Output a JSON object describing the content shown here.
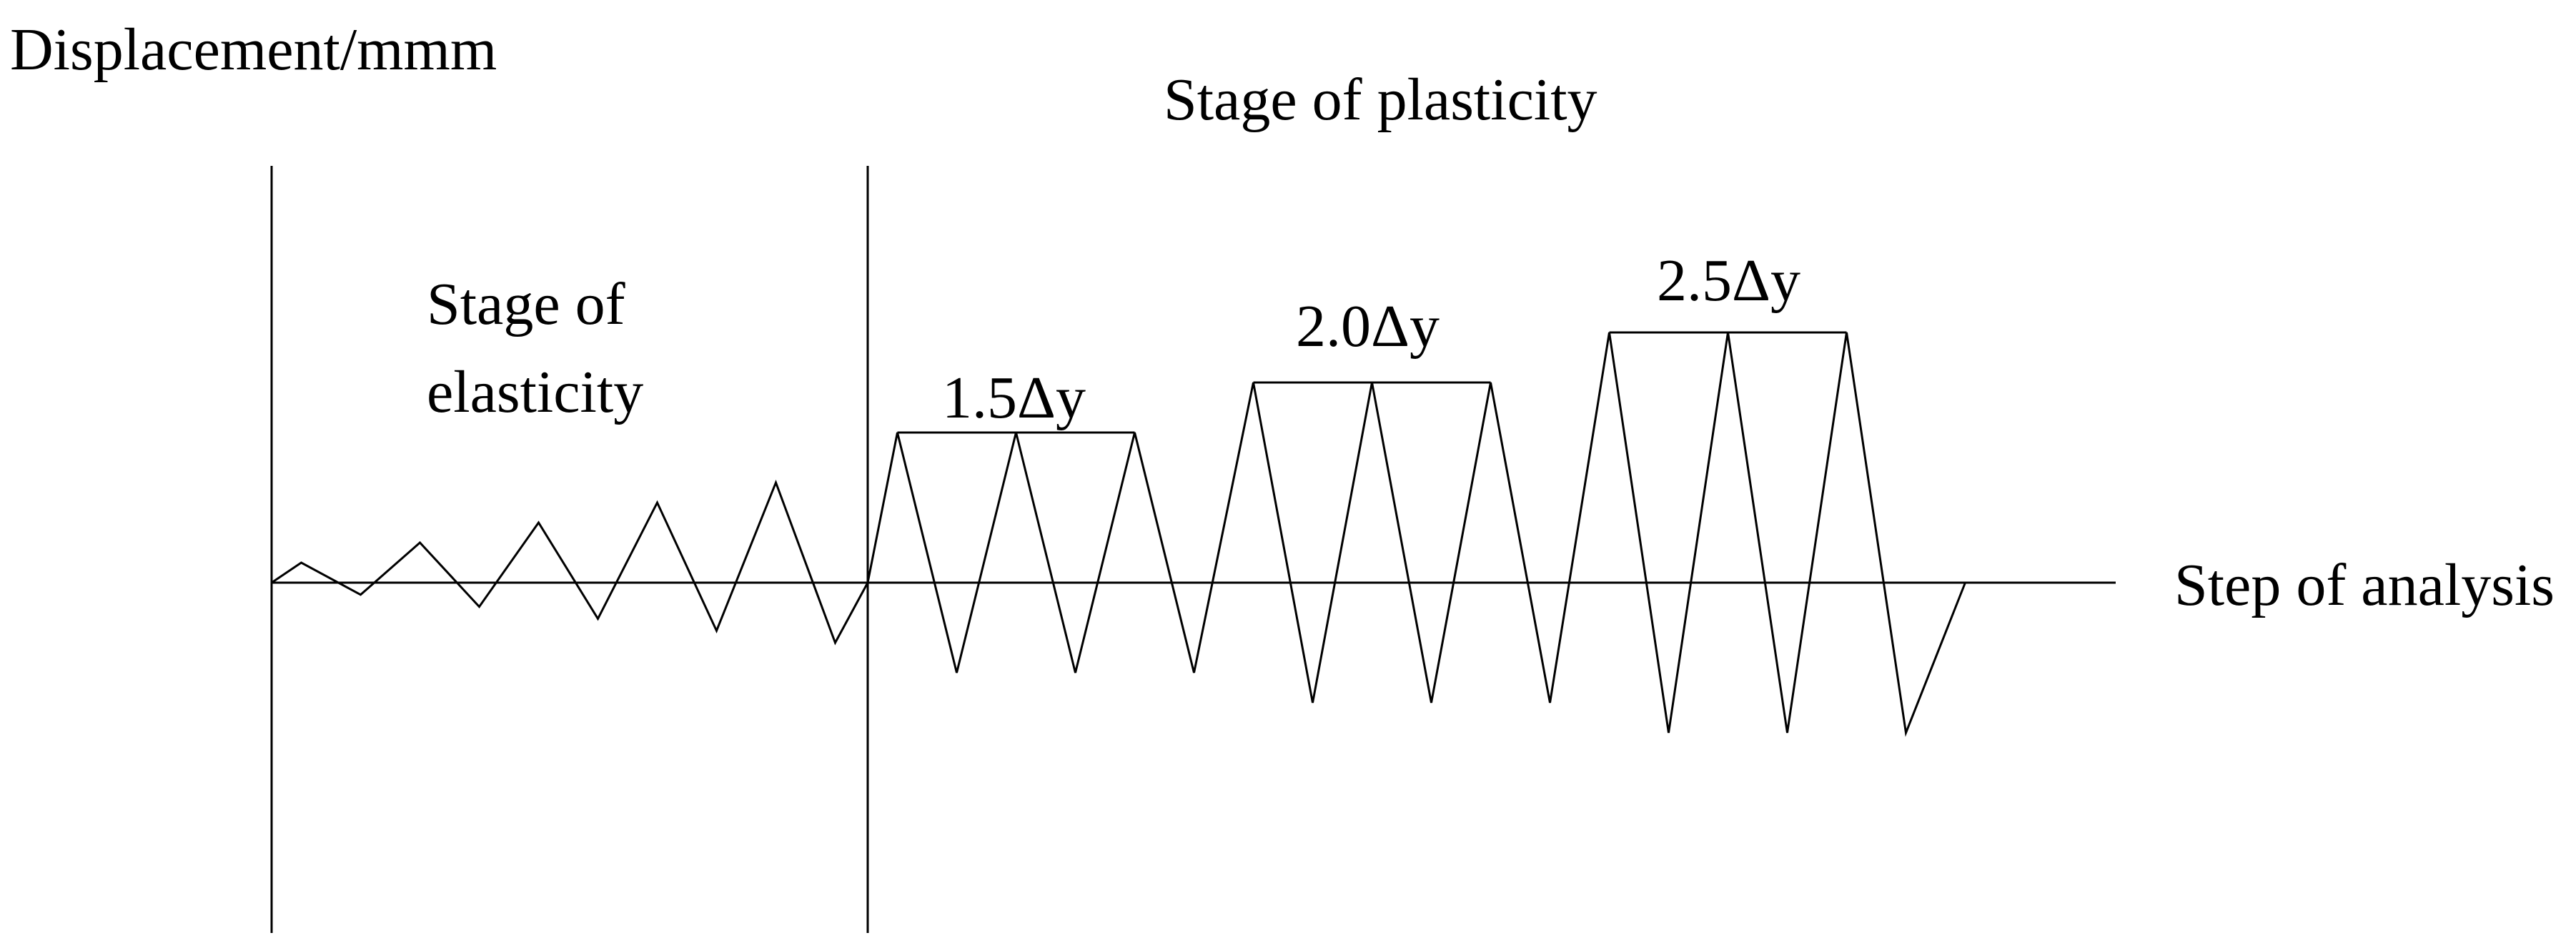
{
  "labels": {
    "y_axis": "Displacement/mmm",
    "x_axis": "Step of analysis",
    "elastic_stage_line1": "Stage of",
    "elastic_stage_line2": "elasticity",
    "plastic_stage": "Stage of plasticity",
    "level_1": "1.5Δy",
    "level_2": "2.0Δy",
    "level_3": "2.5Δy"
  },
  "chart_data": {
    "type": "line",
    "description_of_axes": {
      "xlabel": "Step of analysis",
      "ylabel": "Displacement/mmm"
    },
    "elastic_cycles": [
      {
        "cycle": 1,
        "amplitude": 0.08
      },
      {
        "cycle": 2,
        "amplitude": 0.16
      },
      {
        "cycle": 3,
        "amplitude": 0.24
      },
      {
        "cycle": 4,
        "amplitude": 0.32
      },
      {
        "cycle": 5,
        "amplitude": 0.4
      }
    ],
    "plastic_levels": [
      {
        "label": "1.5Δy",
        "multiplier": 1.5,
        "cycles": 3,
        "amplitude": 0.6
      },
      {
        "label": "2.0Δy",
        "multiplier": 2.0,
        "cycles": 3,
        "amplitude": 0.8
      },
      {
        "label": "2.5Δy",
        "multiplier": 2.5,
        "cycles": 3,
        "amplitude": 1.0
      }
    ]
  }
}
